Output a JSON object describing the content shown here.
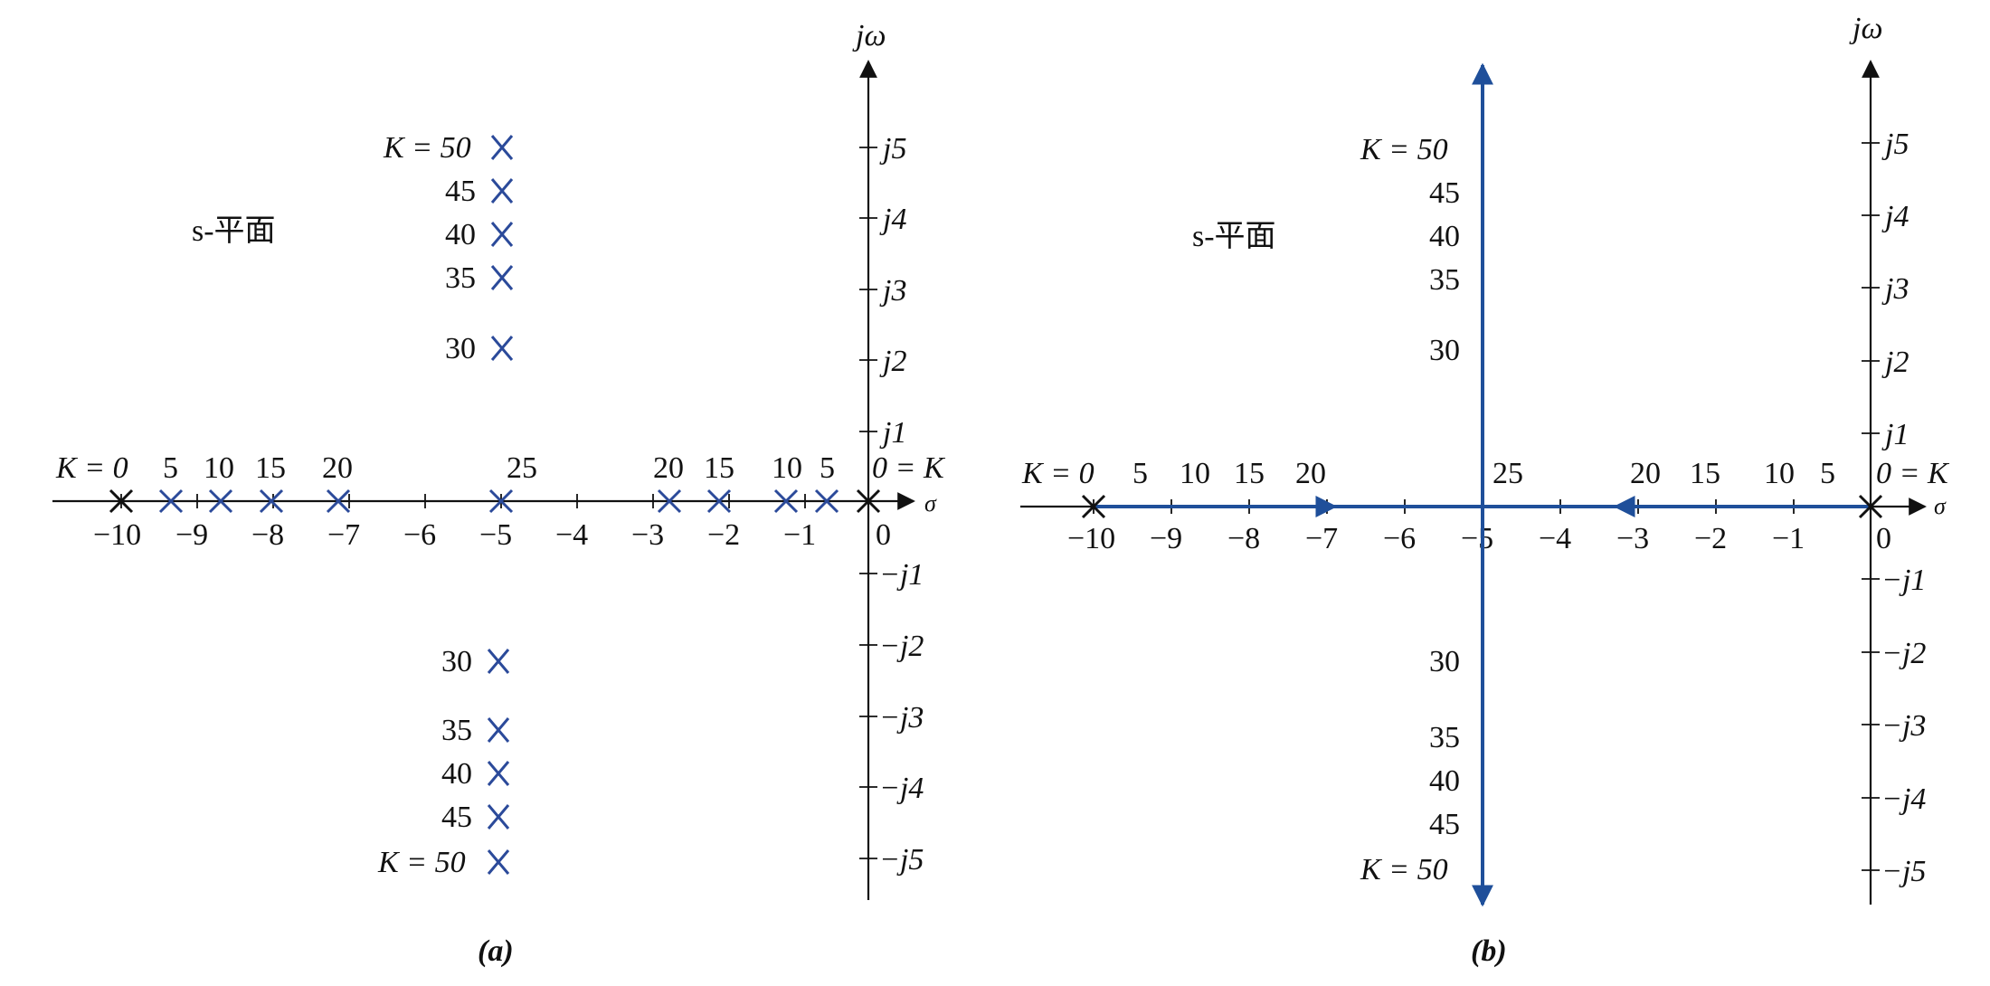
{
  "panel_a": {
    "caption": "(a)",
    "plane_label": "s-平面",
    "axis_labels": {
      "imag": "jω",
      "real": "σ"
    },
    "real_ticks": [
      "−10",
      "−9",
      "−8",
      "−7",
      "−6",
      "−5",
      "−4",
      "−3",
      "−2",
      "−1",
      "0"
    ],
    "imag_ticks": [
      "j5",
      "j4",
      "j3",
      "j2",
      "j1",
      "−j1",
      "−j2",
      "−j3",
      "−j4",
      "−j5"
    ],
    "real_axis_gain_labels": {
      "left": [
        "K = 0",
        "5",
        "10",
        "15",
        "20"
      ],
      "center": "25",
      "right": [
        "20",
        "15",
        "10",
        "5",
        "0 = K"
      ]
    },
    "upper_gain_labels": [
      "K = 50",
      "45",
      "40",
      "35",
      "30"
    ],
    "lower_gain_labels": [
      "30",
      "35",
      "40",
      "45",
      "K = 50"
    ]
  },
  "panel_b": {
    "caption": "(b)",
    "plane_label": "s-平面",
    "axis_labels": {
      "imag": "jω",
      "real": "σ"
    },
    "real_ticks": [
      "−10",
      "−9",
      "−8",
      "−7",
      "−6",
      "−5",
      "−4",
      "−3",
      "−2",
      "−1",
      "0"
    ],
    "imag_ticks": [
      "j5",
      "j4",
      "j3",
      "j2",
      "j1",
      "−j1",
      "−j2",
      "−j3",
      "−j4",
      "−j5"
    ],
    "real_axis_gain_labels": {
      "left": [
        "K = 0",
        "5",
        "10",
        "15",
        "20"
      ],
      "center": "25",
      "right": [
        "20",
        "15",
        "10",
        "5",
        "0 = K"
      ]
    },
    "upper_gain_labels": [
      "K = 50",
      "45",
      "40",
      "35",
      "30"
    ],
    "lower_gain_labels": [
      "30",
      "35",
      "40",
      "45",
      "K = 50"
    ]
  },
  "colors": {
    "locus": "#1f4f9a",
    "pole_marker": "#2b4a9a",
    "axis": "#111111"
  }
}
